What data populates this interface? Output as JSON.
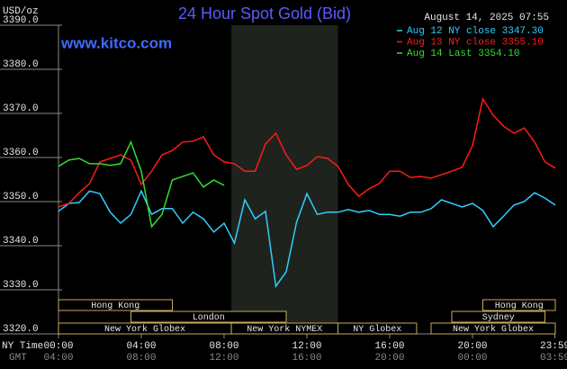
{
  "chart_data": {
    "type": "line",
    "title": "24 Hour Spot Gold (Bid)",
    "timestamp": "August 14, 2025 07:55",
    "site": "www.kitco.com",
    "y_label": "USD/oz",
    "x_label": "NY Time",
    "x2_label": "GMT",
    "x": [
      0,
      0.5,
      1,
      1.5,
      2,
      2.5,
      3,
      3.5,
      4,
      4.5,
      5,
      5.5,
      6,
      6.5,
      7,
      7.5,
      8,
      8.5,
      9,
      9.5,
      10,
      10.5,
      11,
      11.5,
      12,
      12.5,
      13,
      13.5,
      14,
      14.5,
      15,
      15.5,
      16,
      16.5,
      17,
      17.5,
      18,
      18.5,
      19,
      19.5,
      20,
      20.5,
      21,
      21.5,
      22,
      22.5,
      23,
      23.5,
      24
    ],
    "series": [
      {
        "name": "Aug 12 NY close 3347.30",
        "color": "#33ccff",
        "values": [
          3347.8,
          3349.6,
          3349.8,
          3352.4,
          3351.8,
          3347.6,
          3345.1,
          3347.1,
          3352.4,
          3347.1,
          3348.4,
          3348.4,
          3345.1,
          3347.6,
          3346.1,
          3343.1,
          3345.1,
          3340.6,
          3350.4,
          3346.1,
          3347.8,
          3330.8,
          3334.1,
          3345.3,
          3351.8,
          3347.1,
          3347.6,
          3347.6,
          3348.2,
          3347.6,
          3348.0,
          3347.1,
          3347.1,
          3346.7,
          3347.6,
          3347.6,
          3348.4,
          3350.4,
          3349.6,
          3348.8,
          3349.6,
          3348.0,
          3344.3,
          3346.7,
          3349.2,
          3350.0,
          3352.0,
          3350.8,
          3349.2
        ]
      },
      {
        "name": "Aug 13 NY close 3355.10",
        "color": "#ff1a1a",
        "values": [
          3348.8,
          3349.6,
          3352.0,
          3354.1,
          3359.0,
          3359.8,
          3360.6,
          3359.4,
          3353.9,
          3356.9,
          3360.6,
          3361.6,
          3363.5,
          3363.7,
          3364.7,
          3360.6,
          3359.0,
          3358.6,
          3356.9,
          3356.9,
          3363.1,
          3365.5,
          3360.6,
          3357.3,
          3358.2,
          3360.2,
          3359.8,
          3358.0,
          3353.9,
          3351.2,
          3352.9,
          3354.1,
          3356.9,
          3356.9,
          3355.5,
          3355.7,
          3355.3,
          3356.1,
          3356.9,
          3357.8,
          3362.7,
          3373.3,
          3369.6,
          3367.1,
          3365.5,
          3366.7,
          3363.5,
          3359.0,
          3357.6
        ]
      },
      {
        "name": "Aug 14 Last 3354.10",
        "color": "#33dd33",
        "values": [
          3358.0,
          3359.4,
          3359.8,
          3358.6,
          3358.6,
          3358.2,
          3358.6,
          3363.5,
          3356.9,
          3344.3,
          3347.1,
          3354.9,
          3355.7,
          3356.5,
          3353.3,
          3354.9,
          3353.7,
          null,
          null,
          null,
          null,
          null,
          null,
          null,
          null,
          null,
          null,
          null,
          null,
          null,
          null,
          null,
          null,
          null,
          null,
          null,
          null,
          null,
          null,
          null,
          null,
          null,
          null,
          null,
          null,
          null,
          null,
          null,
          null
        ]
      }
    ],
    "xlim": [
      0,
      24
    ],
    "ylim": [
      3320,
      3390
    ],
    "xticks": [
      {
        "value": 0,
        "label": "00:00"
      },
      {
        "value": 4,
        "label": "04:00"
      },
      {
        "value": 8,
        "label": "08:00"
      },
      {
        "value": 12,
        "label": "12:00"
      },
      {
        "value": 16,
        "label": "16:00"
      },
      {
        "value": 20,
        "label": "20:00"
      },
      {
        "value": 23.98,
        "label": "23:59"
      }
    ],
    "x2ticklabels": [
      "04:00",
      "08:00",
      "12:00",
      "16:00",
      "20:00",
      "00:00",
      "03:59"
    ],
    "yticks": [
      {
        "value": 3320,
        "label": "3320.0"
      },
      {
        "value": 3330,
        "label": "3330.0"
      },
      {
        "value": 3340,
        "label": "3340.0"
      },
      {
        "value": 3350,
        "label": "3350.0"
      },
      {
        "value": 3360,
        "label": "3360.0"
      },
      {
        "value": 3370,
        "label": "3370.0"
      },
      {
        "value": 3380,
        "label": "3380.0"
      },
      {
        "value": 3390,
        "label": "3390.0"
      }
    ],
    "grid": false,
    "sessions": [
      {
        "label": "Hong Kong",
        "start": 0,
        "end": 5.5
      },
      {
        "label": "London",
        "start": 3.5,
        "end": 11
      },
      {
        "label": "New York Globex",
        "start": 0,
        "end": 8.35
      },
      {
        "label": "New York NYMEX",
        "start": 8.35,
        "end": 13.5
      },
      {
        "label": "NY Globex",
        "start": 13.5,
        "end": 17.3
      },
      {
        "label": "Hong Kong",
        "start": 20.5,
        "end": 24
      },
      {
        "label": "Sydney",
        "start": 19,
        "end": 23.5
      },
      {
        "label": "New York Globex",
        "start": 18,
        "end": 24
      }
    ]
  }
}
